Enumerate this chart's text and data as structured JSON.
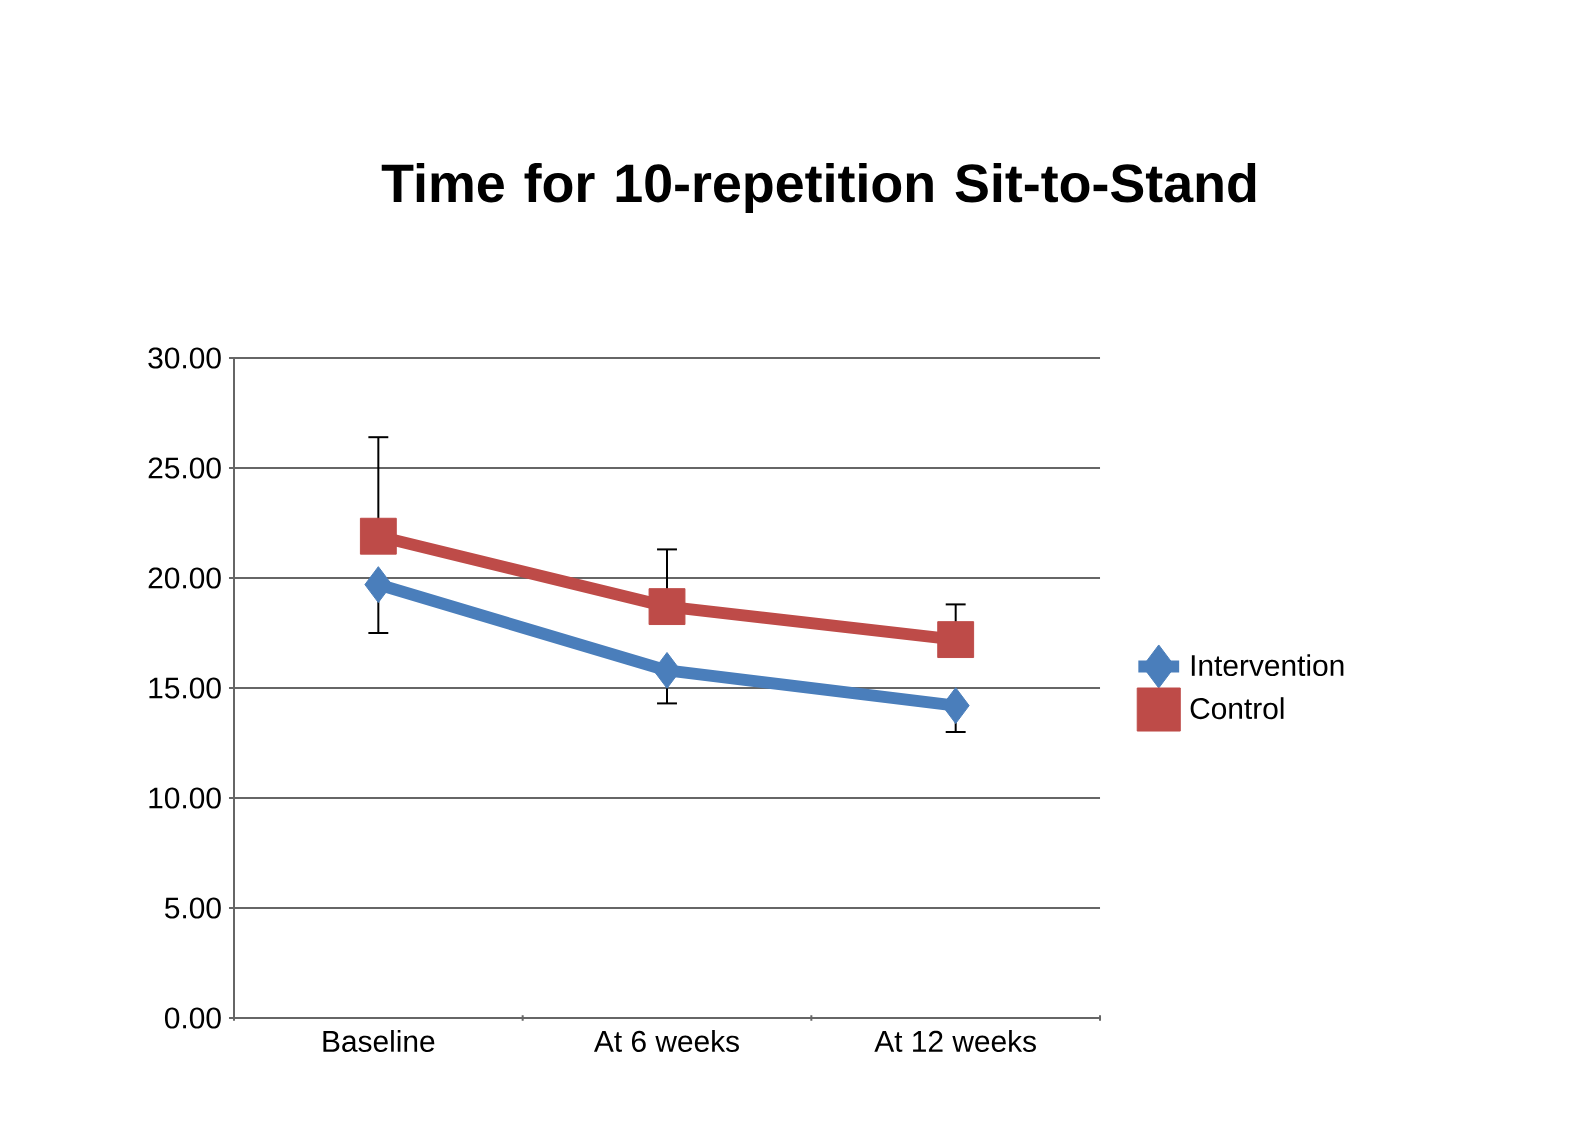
{
  "chart_data": {
    "type": "line",
    "title": "Time for 10-repetition Sit-to-Stand",
    "categories": [
      "Baseline",
      "At 6 weeks",
      "At 12 weeks"
    ],
    "series": [
      {
        "name": "Intervention",
        "color": "#4a7ebb",
        "marker": "diamond",
        "values": [
          19.7,
          15.8,
          14.2
        ],
        "errors": [
          [
            17.5,
            19.7
          ],
          [
            14.3,
            15.8
          ],
          [
            13.0,
            14.2
          ]
        ]
      },
      {
        "name": "Control",
        "color": "#be4b48",
        "marker": "square",
        "values": [
          21.9,
          18.7,
          17.2
        ],
        "errors": [
          [
            21.9,
            26.4
          ],
          [
            18.7,
            21.3
          ],
          [
            17.2,
            18.8
          ]
        ]
      }
    ],
    "ylim": [
      0,
      30
    ],
    "yticks": [
      {
        "value": 0,
        "label": "0.00"
      },
      {
        "value": 5,
        "label": "5.00"
      },
      {
        "value": 10,
        "label": "10.00"
      },
      {
        "value": 15,
        "label": "15.00"
      },
      {
        "value": 20,
        "label": "20.00"
      },
      {
        "value": 25,
        "label": "25.00"
      },
      {
        "value": 30,
        "label": "30.00"
      }
    ],
    "grid": "y",
    "legend": "right",
    "line_style": "solid"
  }
}
